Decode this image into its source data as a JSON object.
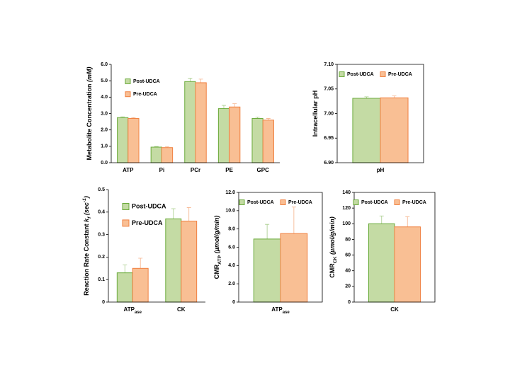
{
  "chart_data": [
    {
      "type": "bar",
      "y_label": [
        "Metabolite Concentration ",
        {
          "text": "(mM)",
          "italic": true
        }
      ],
      "categories": [
        "ATP",
        "Pi",
        "PCr",
        "PE",
        "GPC"
      ],
      "series": [
        {
          "name": "Post-UDCA",
          "color": "#c4dba4",
          "edge": "#6aaa3a",
          "values": [
            2.75,
            0.95,
            4.95,
            3.3,
            2.7
          ],
          "errors": [
            0.05,
            0.04,
            0.2,
            0.2,
            0.08
          ]
        },
        {
          "name": "Pre-UDCA",
          "color": "#f9bf94",
          "edge": "#f08040",
          "values": [
            2.7,
            0.92,
            4.88,
            3.4,
            2.6
          ],
          "errors": [
            0.05,
            0.06,
            0.22,
            0.2,
            0.1
          ]
        }
      ],
      "ylim": [
        0,
        6
      ],
      "yticks": [
        {
          "value": 0,
          "label": "0.0"
        },
        {
          "value": 1,
          "label": "1.0"
        },
        {
          "value": 2,
          "label": "2.0"
        },
        {
          "value": 3,
          "label": "3.0"
        },
        {
          "value": 4,
          "label": "4.0"
        },
        {
          "value": 5,
          "label": "5.0"
        },
        {
          "value": 6,
          "label": "6.0"
        }
      ],
      "legend": "upper left",
      "legend_layout": "vertical",
      "frame": false
    },
    {
      "type": "bar",
      "y_label": [
        "Intracellular pH"
      ],
      "categories": [
        "pH"
      ],
      "series": [
        {
          "name": "Post-UDCA",
          "color": "#c4dba4",
          "edge": "#6aaa3a",
          "values": [
            7.031
          ],
          "errors": [
            0.003
          ]
        },
        {
          "name": "Pre-UDCA",
          "color": "#f9bf94",
          "edge": "#f08040",
          "values": [
            7.032
          ],
          "errors": [
            0.004
          ]
        }
      ],
      "ylim": [
        6.9,
        7.1
      ],
      "yticks": [
        {
          "value": 6.9,
          "label": "6.90"
        },
        {
          "value": 6.95,
          "label": "6.95"
        },
        {
          "value": 7,
          "label": "7.00"
        },
        {
          "value": 7.05,
          "label": "7.05"
        },
        {
          "value": 7.1,
          "label": "7.10"
        }
      ],
      "legend": "upper center",
      "legend_layout": "horizontal",
      "frame": true
    },
    {
      "type": "bar",
      "y_label": [
        "Reaction Rate Constant ",
        {
          "text": "k",
          "italic": true
        },
        {
          "text": "f",
          "italic": true,
          "script": "sub"
        },
        {
          "text": " (sec",
          "italic": true
        },
        {
          "text": "-1",
          "italic": true,
          "script": "sup"
        },
        {
          "text": ")",
          "italic": true
        }
      ],
      "categories": [
        [
          "ATP",
          {
            "text": "ase",
            "script": "sub"
          }
        ],
        "CK"
      ],
      "series": [
        {
          "name": "Post-UDCA",
          "color": "#c4dba4",
          "edge": "#6aaa3a",
          "values": [
            0.13,
            0.37
          ],
          "errors": [
            0.035,
            0.045
          ]
        },
        {
          "name": "Pre-UDCA",
          "color": "#f9bf94",
          "edge": "#f08040",
          "values": [
            0.15,
            0.36
          ],
          "errors": [
            0.045,
            0.06
          ]
        }
      ],
      "ylim": [
        0,
        0.5
      ],
      "yticks": [
        0,
        0.1,
        0.2,
        0.3,
        0.4,
        0.5
      ],
      "legend": "upper left",
      "legend_layout": "vertical",
      "frame": false
    },
    {
      "type": "bar",
      "y_label": [
        "CMR",
        {
          "text": "ATP",
          "script": "sub"
        },
        {
          "text": " (µmol/g/min)",
          "italic": true
        }
      ],
      "categories": [
        [
          "ATP",
          {
            "text": "ase",
            "script": "sub"
          }
        ]
      ],
      "series": [
        {
          "name": "Post-UDCA",
          "color": "#c4dba4",
          "edge": "#6aaa3a",
          "values": [
            6.9
          ],
          "errors": [
            1.6
          ]
        },
        {
          "name": "Pre-UDCA",
          "color": "#f9bf94",
          "edge": "#f08040",
          "values": [
            7.5
          ],
          "errors": [
            2.9
          ]
        }
      ],
      "ylim": [
        0,
        12
      ],
      "yticks": [
        0,
        {
          "value": 2,
          "label": "2.0"
        },
        {
          "value": 4,
          "label": "4.0"
        },
        {
          "value": 6,
          "label": "6.0"
        },
        {
          "value": 8,
          "label": "8.0"
        },
        {
          "value": 10,
          "label": "10.0"
        },
        {
          "value": 12,
          "label": "12.0"
        }
      ],
      "legend": "upper center",
      "legend_layout": "horizontal",
      "frame": true
    },
    {
      "type": "bar",
      "y_label": [
        "CMR",
        {
          "text": "CK",
          "script": "sub"
        },
        {
          "text": " (µmol/g/min)",
          "italic": true
        }
      ],
      "categories": [
        "CK"
      ],
      "series": [
        {
          "name": "Post-UDCA",
          "color": "#c4dba4",
          "edge": "#6aaa3a",
          "values": [
            100
          ],
          "errors": [
            10
          ]
        },
        {
          "name": "Pre-UDCA",
          "color": "#f9bf94",
          "edge": "#f08040",
          "values": [
            96
          ],
          "errors": [
            13
          ]
        }
      ],
      "ylim": [
        0,
        140
      ],
      "yticks": [
        0,
        20,
        40,
        60,
        80,
        100,
        120,
        140
      ],
      "legend": "upper center",
      "legend_layout": "horizontal",
      "frame": true
    }
  ]
}
